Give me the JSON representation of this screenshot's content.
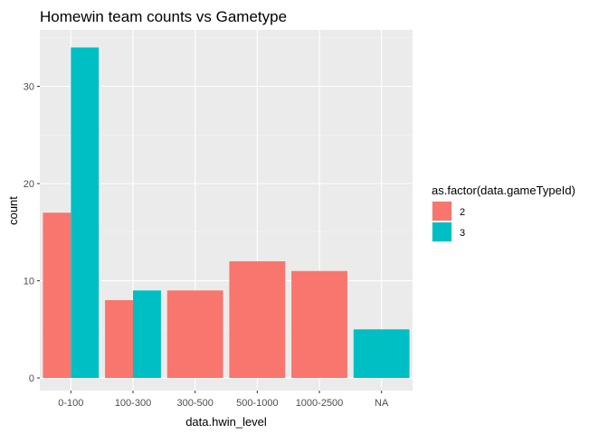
{
  "chart_data": {
    "type": "bar",
    "title": "Homewin team counts vs Gametype",
    "xlabel": "data.hwin_level",
    "ylabel": "count",
    "categories": [
      "0-100",
      "100-300",
      "300-500",
      "500-1000",
      "1000-2500",
      "NA"
    ],
    "series": [
      {
        "name": "2",
        "color": "#F8766D",
        "values": [
          17,
          8,
          9,
          12,
          11,
          null
        ]
      },
      {
        "name": "3",
        "color": "#00BFC4",
        "values": [
          34,
          9,
          null,
          null,
          null,
          5
        ]
      }
    ],
    "ylim": [
      0,
      35.5
    ],
    "yticks": [
      0,
      10,
      20,
      30
    ],
    "legend": {
      "title": "as.factor(data.gameTypeId)",
      "position": "right"
    },
    "grid": true,
    "panel_background": "#EBEBEB"
  }
}
